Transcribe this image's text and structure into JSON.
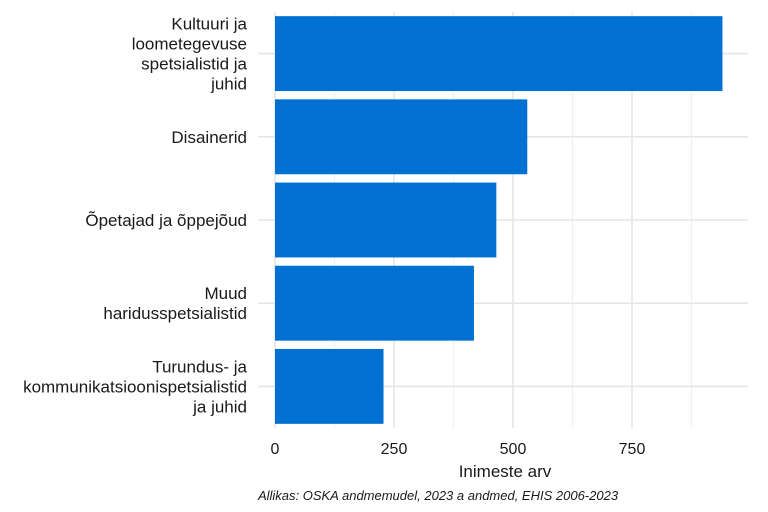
{
  "chart_data": {
    "type": "bar",
    "orientation": "horizontal",
    "categories": [
      [
        "Kultuuri ja",
        "loometegevuse",
        "spetsialistid ja",
        "juhid"
      ],
      [
        "Disainerid"
      ],
      [
        "Õpetajad ja õppejõud"
      ],
      [
        "Muud",
        "haridusspetsialistid"
      ],
      [
        "Turundus- ja",
        "kommunikatsioonispetsialistid",
        "ja juhid"
      ]
    ],
    "values": [
      940,
      530,
      465,
      418,
      228
    ],
    "xlabel": "Inimeste arv",
    "ylabel": "",
    "xlim": [
      0,
      990
    ],
    "xticks": [
      0,
      250,
      500,
      750
    ],
    "xtick_labels": [
      "0",
      "250",
      "500",
      "750"
    ],
    "bar_color": "#0070D2",
    "grid": true,
    "caption": "Allikas: OSKA andmemudel, 2023 a andmed, EHIS 2006-2023"
  }
}
